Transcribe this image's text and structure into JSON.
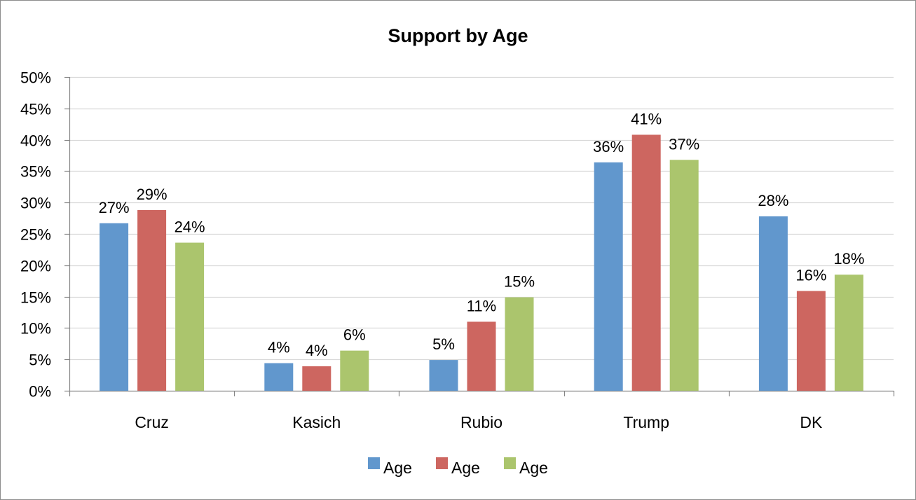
{
  "chart_data": {
    "type": "bar",
    "title": "Support by Age",
    "xlabel": "",
    "ylabel": "",
    "categories": [
      "Cruz",
      "Kasich",
      "Rubio",
      "Trump",
      "DK"
    ],
    "series": [
      {
        "name": "Age",
        "color": "#6197cd",
        "values": [
          27,
          4,
          5,
          36,
          28
        ],
        "bar_values": [
          26.7,
          4.4,
          4.9,
          36.4,
          27.8
        ]
      },
      {
        "name": "Age",
        "color": "#cd6660",
        "values": [
          29,
          4,
          11,
          41,
          16
        ],
        "bar_values": [
          28.8,
          3.9,
          11.0,
          40.8,
          15.9
        ]
      },
      {
        "name": "Age",
        "color": "#abc56d",
        "values": [
          24,
          6,
          15,
          37,
          18
        ],
        "bar_values": [
          23.6,
          6.4,
          14.9,
          36.8,
          18.5
        ]
      }
    ],
    "ylim": [
      0,
      50
    ],
    "y_ticks": [
      "0%",
      "5%",
      "10%",
      "15%",
      "20%",
      "25%",
      "30%",
      "35%",
      "40%",
      "45%",
      "50%"
    ],
    "y_tick_values": [
      0,
      5,
      10,
      15,
      20,
      25,
      30,
      35,
      40,
      45,
      50
    ],
    "value_suffix": "%",
    "grid": true,
    "legend_position": "bottom"
  }
}
